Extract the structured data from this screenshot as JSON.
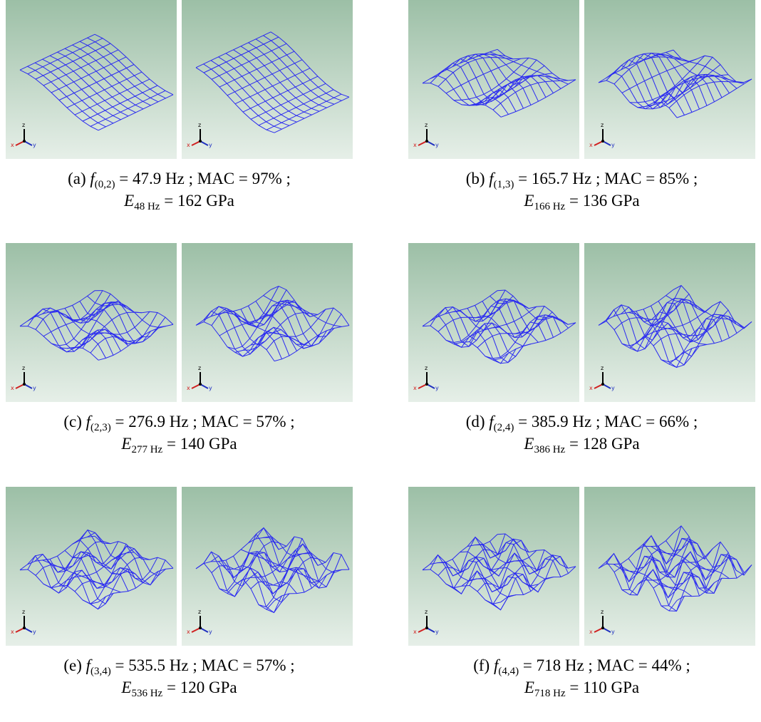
{
  "figures": [
    {
      "id": "a",
      "label": "(a)",
      "mode": "(0,2)",
      "freq": "47.9",
      "mac": "97",
      "e_sub": "48",
      "e_val": "162",
      "m": 0,
      "n": 2
    },
    {
      "id": "b",
      "label": "(b)",
      "mode": "(1,3)",
      "freq": "165.7",
      "mac": "85",
      "e_sub": "166",
      "e_val": "136",
      "m": 1,
      "n": 3
    },
    {
      "id": "c",
      "label": "(c)",
      "mode": "(2,3)",
      "freq": "276.9",
      "mac": "57",
      "e_sub": "277",
      "e_val": "140",
      "m": 2,
      "n": 3
    },
    {
      "id": "d",
      "label": "(d)",
      "mode": "(2,4)",
      "freq": "385.9",
      "mac": "66",
      "e_sub": "386",
      "e_val": "128",
      "m": 2,
      "n": 4
    },
    {
      "id": "e",
      "label": "(e)",
      "mode": "(3,4)",
      "freq": "535.5",
      "mac": "57",
      "e_sub": "536",
      "e_val": "120",
      "m": 3,
      "n": 4
    },
    {
      "id": "f",
      "label": "(f)",
      "mode": "(4,4)",
      "freq": "718",
      "mac": "44",
      "e_sub": "718",
      "e_val": "110",
      "m": 4,
      "n": 4
    }
  ],
  "units": {
    "freq": "Hz",
    "modulus": "GPa",
    "e_sub_unit": "Hz",
    "mac_label": "MAC",
    "percent": "%"
  },
  "triad": {
    "z": "z",
    "x": "x",
    "y": "y"
  },
  "colors": {
    "mesh": "#2a2af0",
    "bg_top": "#9cbfa6",
    "bg_bottom": "#e6efe8",
    "x_axis": "#d02020",
    "y_axis": "#2030c0",
    "z_axis": "#000000"
  }
}
